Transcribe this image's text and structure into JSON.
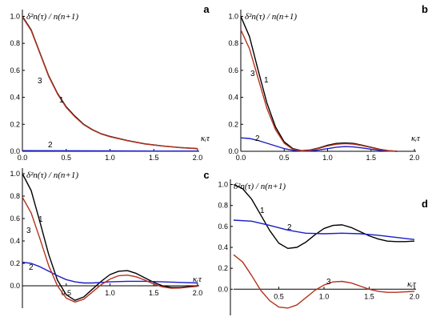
{
  "colors": {
    "curve1": "#000000",
    "curve2": "#1c1cc8",
    "curve3": "#b5321e",
    "axis": "#000000"
  },
  "chart_data": [
    {
      "type": "line",
      "panel": "a",
      "ylabel": "δ²n(τ) / n(n+1)",
      "xlabel": "κᵢτ",
      "xlim": [
        0,
        2.0
      ],
      "ylim": [
        0,
        1.05
      ],
      "x_ticks": [
        "0.0",
        "0.5",
        "1.0",
        "1.5",
        "2.0"
      ],
      "y_ticks": [
        "0.0",
        "0.2",
        "0.4",
        "0.6",
        "0.8",
        "1.0"
      ],
      "series": [
        {
          "name": "1",
          "color": "#000000",
          "x": [
            0,
            0.1,
            0.2,
            0.3,
            0.4,
            0.5,
            0.6,
            0.7,
            0.8,
            0.9,
            1.0,
            1.2,
            1.4,
            1.6,
            1.8,
            2.0
          ],
          "y": [
            1.0,
            0.9,
            0.73,
            0.56,
            0.43,
            0.33,
            0.26,
            0.2,
            0.16,
            0.13,
            0.11,
            0.08,
            0.055,
            0.04,
            0.028,
            0.02
          ]
        },
        {
          "name": "2",
          "color": "#1c1cc8",
          "x": [
            0,
            0.5,
            1.0,
            1.5,
            2.0
          ],
          "y": [
            0.005,
            0.004,
            0.003,
            0.002,
            0.002
          ]
        },
        {
          "name": "3",
          "color": "#b5321e",
          "x": [
            0,
            0.1,
            0.2,
            0.3,
            0.4,
            0.5,
            0.6,
            0.7,
            0.8,
            0.9,
            1.0,
            1.2,
            1.4,
            1.6,
            1.8,
            2.0
          ],
          "y": [
            0.995,
            0.895,
            0.725,
            0.555,
            0.425,
            0.325,
            0.255,
            0.197,
            0.158,
            0.128,
            0.108,
            0.078,
            0.054,
            0.039,
            0.027,
            0.019
          ]
        }
      ]
    },
    {
      "type": "line",
      "panel": "b",
      "ylabel": "δ²n(τ) / n(n+1)",
      "xlabel": "κᵢτ",
      "xlim": [
        0,
        2.0
      ],
      "ylim": [
        0,
        1.05
      ],
      "x_ticks": [
        "0.0",
        "0.5",
        "1.0",
        "1.5",
        "2.0"
      ],
      "y_ticks": [
        "0.0",
        "0.2",
        "0.4",
        "0.6",
        "0.8",
        "1.0"
      ],
      "series": [
        {
          "name": "1",
          "color": "#000000",
          "x": [
            0,
            0.1,
            0.2,
            0.3,
            0.4,
            0.5,
            0.6,
            0.7,
            0.8,
            0.9,
            1.0,
            1.1,
            1.2,
            1.3,
            1.4,
            1.5,
            1.6,
            1.7,
            1.8
          ],
          "y": [
            1.0,
            0.85,
            0.6,
            0.36,
            0.18,
            0.07,
            0.02,
            0.005,
            0.01,
            0.025,
            0.045,
            0.058,
            0.062,
            0.058,
            0.045,
            0.03,
            0.015,
            0.005,
            0.0
          ]
        },
        {
          "name": "2",
          "color": "#1c1cc8",
          "x": [
            0,
            0.1,
            0.2,
            0.3,
            0.4,
            0.5,
            0.6,
            0.7,
            0.8,
            0.9,
            1.0,
            1.1,
            1.2,
            1.3,
            1.4,
            1.5,
            1.6,
            1.7,
            1.8
          ],
          "y": [
            0.1,
            0.095,
            0.08,
            0.06,
            0.04,
            0.02,
            0.008,
            0.002,
            0.003,
            0.01,
            0.02,
            0.03,
            0.035,
            0.032,
            0.025,
            0.015,
            0.007,
            0.002,
            0.0
          ]
        },
        {
          "name": "3",
          "color": "#b5321e",
          "x": [
            0,
            0.1,
            0.2,
            0.3,
            0.4,
            0.5,
            0.6,
            0.7,
            0.8,
            0.9,
            1.0,
            1.1,
            1.2,
            1.3,
            1.4,
            1.5,
            1.6,
            1.7,
            1.8
          ],
          "y": [
            0.9,
            0.76,
            0.54,
            0.32,
            0.16,
            0.06,
            0.015,
            0.003,
            0.008,
            0.022,
            0.04,
            0.052,
            0.057,
            0.053,
            0.042,
            0.028,
            0.014,
            0.005,
            0.0
          ]
        }
      ]
    },
    {
      "type": "line",
      "panel": "c",
      "ylabel": "δ²n(τ) / n(n+1)",
      "xlabel": "κᵢτ",
      "xlim": [
        0,
        2.0
      ],
      "ylim": [
        -0.2,
        1.05
      ],
      "x_ticks": [
        "0.5",
        "1.0",
        "1.5",
        "2.0"
      ],
      "y_ticks": [
        "0.0",
        "0.2",
        "0.4",
        "0.6",
        "0.8",
        "1.0"
      ],
      "series": [
        {
          "name": "1",
          "color": "#000000",
          "x": [
            0,
            0.1,
            0.2,
            0.3,
            0.4,
            0.5,
            0.6,
            0.7,
            0.8,
            0.9,
            1.0,
            1.1,
            1.2,
            1.3,
            1.4,
            1.5,
            1.6,
            1.7,
            1.8,
            1.9,
            2.0
          ],
          "y": [
            1.0,
            0.85,
            0.57,
            0.28,
            0.05,
            -0.08,
            -0.13,
            -0.1,
            -0.03,
            0.04,
            0.1,
            0.13,
            0.135,
            0.11,
            0.07,
            0.03,
            0.0,
            -0.015,
            -0.015,
            -0.008,
            0.0
          ]
        },
        {
          "name": "2",
          "color": "#1c1cc8",
          "x": [
            0,
            0.1,
            0.2,
            0.3,
            0.4,
            0.5,
            0.6,
            0.7,
            0.8,
            0.9,
            1.0,
            1.2,
            1.4,
            1.6,
            1.8,
            2.0
          ],
          "y": [
            0.21,
            0.2,
            0.17,
            0.13,
            0.09,
            0.055,
            0.035,
            0.025,
            0.025,
            0.03,
            0.035,
            0.04,
            0.04,
            0.035,
            0.03,
            0.025
          ]
        },
        {
          "name": "3",
          "color": "#b5321e",
          "x": [
            0,
            0.1,
            0.2,
            0.3,
            0.4,
            0.5,
            0.6,
            0.7,
            0.8,
            0.9,
            1.0,
            1.1,
            1.2,
            1.3,
            1.4,
            1.5,
            1.6,
            1.7,
            1.8,
            1.9,
            2.0
          ],
          "y": [
            0.79,
            0.65,
            0.42,
            0.18,
            0.0,
            -0.11,
            -0.145,
            -0.12,
            -0.055,
            0.01,
            0.06,
            0.09,
            0.095,
            0.08,
            0.05,
            0.015,
            -0.01,
            -0.022,
            -0.02,
            -0.012,
            -0.005
          ]
        }
      ]
    },
    {
      "type": "line",
      "panel": "d",
      "ylabel": "δ²n(τ) / n(n+1)",
      "xlabel": "κᵢτ",
      "xlim": [
        0,
        2.0
      ],
      "ylim": [
        -0.25,
        1.05
      ],
      "x_ticks": [
        "0.5",
        "1.0",
        "1.5",
        "2.0"
      ],
      "y_ticks": [
        "0.0",
        "0.2",
        "0.4",
        "0.6",
        "0.8",
        "1.0"
      ],
      "series": [
        {
          "name": "1",
          "color": "#000000",
          "x": [
            0,
            0.1,
            0.2,
            0.3,
            0.4,
            0.5,
            0.6,
            0.7,
            0.8,
            0.9,
            1.0,
            1.1,
            1.2,
            1.3,
            1.4,
            1.5,
            1.6,
            1.7,
            1.8,
            1.9,
            2.0
          ],
          "y": [
            1.0,
            0.96,
            0.86,
            0.71,
            0.56,
            0.44,
            0.39,
            0.4,
            0.45,
            0.52,
            0.58,
            0.61,
            0.615,
            0.59,
            0.55,
            0.51,
            0.48,
            0.46,
            0.455,
            0.455,
            0.46
          ]
        },
        {
          "name": "2",
          "color": "#1c1cc8",
          "x": [
            0,
            0.2,
            0.4,
            0.6,
            0.8,
            1.0,
            1.2,
            1.4,
            1.6,
            1.8,
            2.0
          ],
          "y": [
            0.66,
            0.65,
            0.61,
            0.565,
            0.535,
            0.53,
            0.535,
            0.53,
            0.515,
            0.495,
            0.475
          ]
        },
        {
          "name": "3",
          "color": "#b5321e",
          "x": [
            0,
            0.1,
            0.2,
            0.3,
            0.4,
            0.5,
            0.6,
            0.7,
            0.8,
            0.9,
            1.0,
            1.1,
            1.2,
            1.3,
            1.4,
            1.5,
            1.6,
            1.7,
            1.8,
            1.9,
            2.0
          ],
          "y": [
            0.33,
            0.26,
            0.13,
            -0.01,
            -0.11,
            -0.17,
            -0.18,
            -0.15,
            -0.08,
            -0.01,
            0.04,
            0.07,
            0.075,
            0.06,
            0.03,
            0.0,
            -0.02,
            -0.03,
            -0.03,
            -0.025,
            -0.02
          ]
        }
      ]
    }
  ],
  "curve_label_texts": [
    "1",
    "2",
    "3"
  ]
}
